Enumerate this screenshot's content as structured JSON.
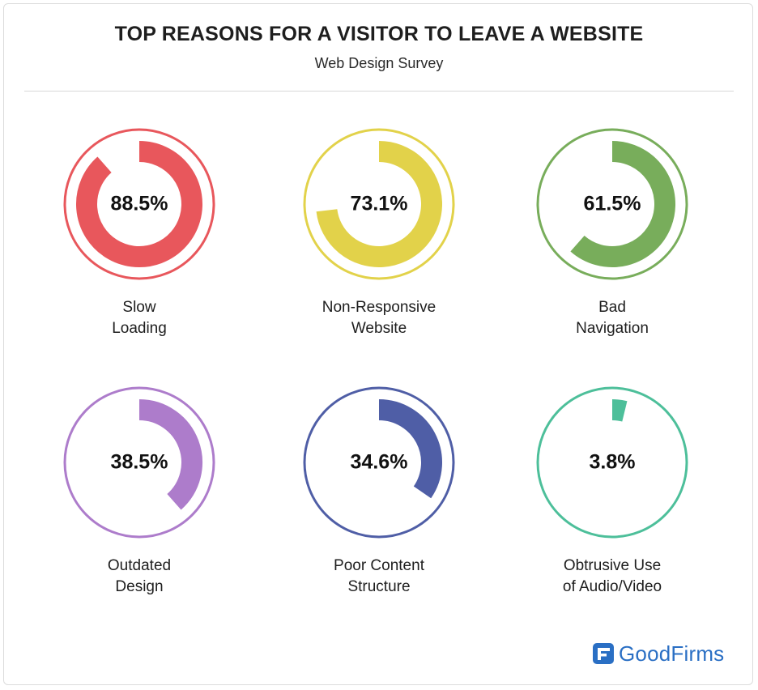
{
  "header": {
    "title": "TOP REASONS FOR A VISITOR TO LEAVE A WEBSITE",
    "subtitle": "Web Design Survey"
  },
  "chart_data": {
    "type": "pie",
    "title": "TOP REASONS FOR A VISITOR TO LEAVE A WEBSITE",
    "subtitle": "Web Design Survey",
    "categories": [
      "Slow Loading",
      "Non-Responsive Website",
      "Bad Navigation",
      "Outdated Design",
      "Poor Content Structure",
      "Obtrusive Use of Audio/Video"
    ],
    "values": [
      88.5,
      73.1,
      61.5,
      38.5,
      34.6,
      3.8
    ],
    "items": [
      {
        "value_label": "88.5%",
        "value": 88.5,
        "label_lines": [
          "Slow",
          "Loading"
        ],
        "color": "#e8575c"
      },
      {
        "value_label": "73.1%",
        "value": 73.1,
        "label_lines": [
          "Non-Responsive",
          "Website"
        ],
        "color": "#e2d24a"
      },
      {
        "value_label": "61.5%",
        "value": 61.5,
        "label_lines": [
          "Bad",
          "Navigation"
        ],
        "color": "#78ad5b"
      },
      {
        "value_label": "38.5%",
        "value": 38.5,
        "label_lines": [
          "Outdated",
          "Design"
        ],
        "color": "#ad7ccb"
      },
      {
        "value_label": "34.6%",
        "value": 34.6,
        "label_lines": [
          "Poor Content",
          "Structure"
        ],
        "color": "#4f5ea6"
      },
      {
        "value_label": "3.8%",
        "value": 3.8,
        "label_lines": [
          "Obtrusive Use",
          "of Audio/Video"
        ],
        "color": "#4dbf9a"
      }
    ]
  },
  "brand": {
    "name": "GoodFirms",
    "icon": "goodfirms-logo-icon",
    "color": "#2a6fc4"
  }
}
